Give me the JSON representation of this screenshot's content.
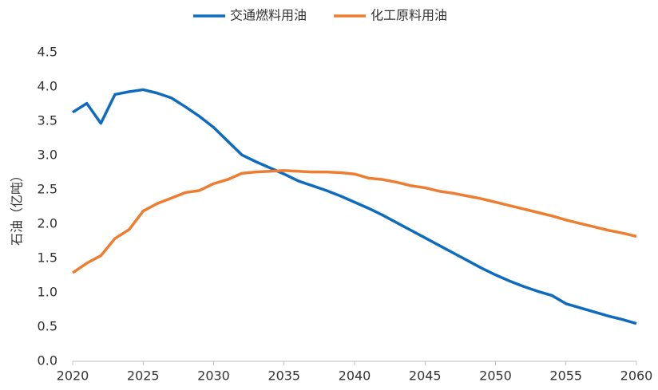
{
  "chart_data": {
    "type": "line",
    "y_label": "石油（亿吨）",
    "x": [
      2020,
      2021,
      2022,
      2023,
      2024,
      2025,
      2026,
      2027,
      2028,
      2029,
      2030,
      2031,
      2032,
      2033,
      2034,
      2035,
      2036,
      2037,
      2038,
      2039,
      2040,
      2041,
      2042,
      2043,
      2044,
      2045,
      2046,
      2047,
      2048,
      2049,
      2050,
      2051,
      2052,
      2053,
      2054,
      2055,
      2056,
      2057,
      2058,
      2059,
      2060
    ],
    "series": [
      {
        "name": "交通燃料用油",
        "color": "#0e6bbd",
        "values": [
          3.63,
          3.76,
          3.47,
          3.89,
          3.93,
          3.96,
          3.91,
          3.84,
          3.71,
          3.57,
          3.41,
          3.21,
          3.01,
          2.91,
          2.82,
          2.73,
          2.63,
          2.56,
          2.49,
          2.41,
          2.32,
          2.23,
          2.13,
          2.02,
          1.91,
          1.8,
          1.69,
          1.58,
          1.47,
          1.36,
          1.26,
          1.17,
          1.09,
          1.02,
          0.96,
          0.84,
          0.78,
          0.72,
          0.66,
          0.61,
          0.55
        ]
      },
      {
        "name": "化工原料用油",
        "color": "#ed7d31",
        "values": [
          1.29,
          1.43,
          1.54,
          1.79,
          1.92,
          2.19,
          2.3,
          2.38,
          2.46,
          2.49,
          2.59,
          2.65,
          2.74,
          2.76,
          2.77,
          2.78,
          2.77,
          2.76,
          2.76,
          2.75,
          2.73,
          2.67,
          2.65,
          2.61,
          2.56,
          2.53,
          2.48,
          2.45,
          2.41,
          2.37,
          2.32,
          2.27,
          2.22,
          2.17,
          2.12,
          2.06,
          2.01,
          1.96,
          1.91,
          1.87,
          1.82
        ]
      }
    ],
    "xlim": [
      2020,
      2060
    ],
    "xticks": [
      2020,
      2025,
      2030,
      2035,
      2040,
      2045,
      2050,
      2055,
      2060
    ],
    "ylim": [
      0,
      4.5
    ],
    "yticks": [
      {
        "value": 0,
        "label": "0.0"
      },
      0.5,
      {
        "value": 1,
        "label": "1.0"
      },
      1.5,
      {
        "value": 2,
        "label": "2.0"
      },
      2.5,
      {
        "value": 3,
        "label": "3.0"
      },
      3.5,
      {
        "value": 4,
        "label": "4.0"
      },
      4.5
    ],
    "grid": false,
    "legend": "top"
  }
}
